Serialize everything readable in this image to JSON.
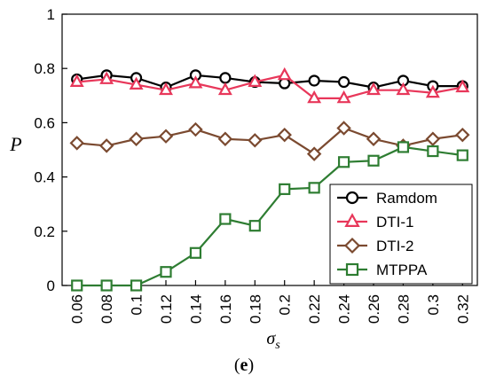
{
  "chart_data": {
    "type": "line",
    "title": "",
    "panel_label_open": "(",
    "panel_label_letter": "e",
    "panel_label_close": ")",
    "xlabel_symbol": "σ",
    "xlabel_subscript": "s",
    "ylabel": "P",
    "x": [
      0.06,
      0.08,
      0.1,
      0.12,
      0.14,
      0.16,
      0.18,
      0.2,
      0.22,
      0.24,
      0.26,
      0.28,
      0.3,
      0.32
    ],
    "x_tick_labels": [
      "0.06",
      "0.08",
      "0.1",
      "0.12",
      "0.14",
      "0.16",
      "0.18",
      "0.2",
      "0.22",
      "0.24",
      "0.26",
      "0.28",
      "0.3",
      "0.32"
    ],
    "ylim": [
      0,
      1
    ],
    "y_ticks": [
      0,
      0.2,
      0.4,
      0.6,
      0.8,
      1
    ],
    "y_tick_labels": [
      "0",
      "0.2",
      "0.4",
      "0.6",
      "0.8",
      "1"
    ],
    "grid": false,
    "legend_position": "bottom-right",
    "series": [
      {
        "name": "Ramdom",
        "marker": "circle",
        "color": "#000000",
        "values": [
          0.76,
          0.775,
          0.765,
          0.73,
          0.775,
          0.765,
          0.75,
          0.745,
          0.755,
          0.75,
          0.73,
          0.755,
          0.735,
          0.735
        ]
      },
      {
        "name": "DTI-1",
        "marker": "triangle",
        "color": "#e8375a",
        "values": [
          0.75,
          0.76,
          0.74,
          0.72,
          0.745,
          0.72,
          0.75,
          0.775,
          0.69,
          0.69,
          0.72,
          0.72,
          0.71,
          0.73
        ]
      },
      {
        "name": "DTI-2",
        "marker": "diamond",
        "color": "#7b4a30",
        "values": [
          0.525,
          0.515,
          0.54,
          0.55,
          0.575,
          0.54,
          0.535,
          0.555,
          0.485,
          0.58,
          0.54,
          0.515,
          0.54,
          0.555
        ]
      },
      {
        "name": "MTPPA",
        "marker": "square",
        "color": "#2e7d32",
        "values": [
          0,
          0,
          0,
          0.05,
          0.12,
          0.245,
          0.22,
          0.355,
          0.36,
          0.455,
          0.46,
          0.51,
          0.495,
          0.48
        ]
      }
    ]
  }
}
